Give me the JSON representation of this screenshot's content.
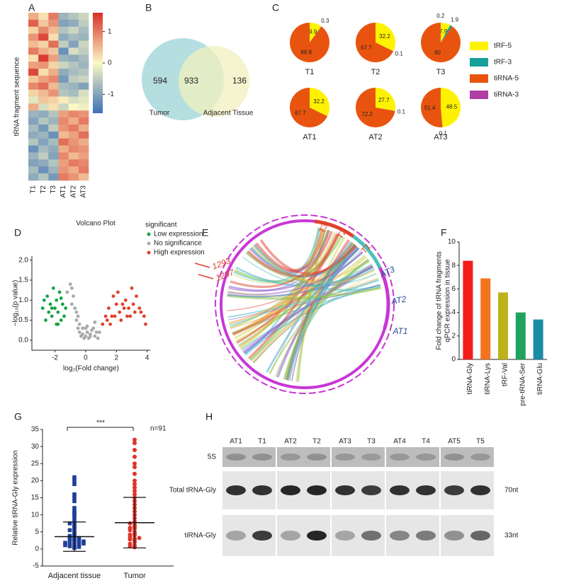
{
  "chart_data": [
    {
      "type": "heatmap",
      "panel": "A",
      "ylabel": "tRNA fragment sequence",
      "columns": [
        "T1",
        "T2",
        "T3",
        "AT1",
        "AT2",
        "AT3"
      ],
      "zlim": [
        -1.6,
        1.6
      ],
      "colorbar_ticks": [
        1,
        0,
        -1
      ],
      "values": [
        [
          0.6,
          0.2,
          1.0,
          -0.8,
          -0.6,
          -0.4
        ],
        [
          1.2,
          0.4,
          0.8,
          -1.0,
          -0.9,
          -0.5
        ],
        [
          0.3,
          0.9,
          0.5,
          -0.6,
          -0.4,
          -0.7
        ],
        [
          0.8,
          1.4,
          0.2,
          -0.9,
          -0.7,
          -0.8
        ],
        [
          0.5,
          0.3,
          1.1,
          -0.5,
          -1.0,
          -0.4
        ],
        [
          1.0,
          0.6,
          0.4,
          -1.2,
          -0.3,
          -0.5
        ],
        [
          0.2,
          1.5,
          0.7,
          -0.8,
          -0.9,
          -0.7
        ],
        [
          0.7,
          0.8,
          0.3,
          -0.4,
          -0.6,
          -0.8
        ],
        [
          1.4,
          0.2,
          0.6,
          -0.9,
          -0.7,
          -0.6
        ],
        [
          0.4,
          0.7,
          0.9,
          -1.1,
          -0.5,
          -0.4
        ],
        [
          0.9,
          1.1,
          0.5,
          -0.7,
          -0.8,
          -1.0
        ],
        [
          0.3,
          0.5,
          0.8,
          -0.6,
          -0.7,
          -0.3
        ],
        [
          -0.2,
          0.4,
          0.3,
          0.1,
          -0.3,
          -0.2
        ],
        [
          0.6,
          -0.3,
          0.2,
          -0.4,
          0.0,
          -0.1
        ],
        [
          -0.8,
          -0.9,
          -0.6,
          0.7,
          0.9,
          0.8
        ],
        [
          -1.0,
          -0.6,
          -0.8,
          0.9,
          0.6,
          1.0
        ],
        [
          -0.7,
          -1.1,
          -0.5,
          0.8,
          1.0,
          0.6
        ],
        [
          -0.9,
          -0.8,
          -1.2,
          0.5,
          0.7,
          1.1
        ],
        [
          -0.6,
          -1.0,
          -0.7,
          1.1,
          0.8,
          0.6
        ],
        [
          -1.2,
          -0.7,
          -0.9,
          0.6,
          0.9,
          0.8
        ],
        [
          -0.8,
          -0.5,
          -1.0,
          0.9,
          0.5,
          0.7
        ],
        [
          -1.0,
          -0.9,
          -0.6,
          0.7,
          1.0,
          0.9
        ],
        [
          -0.7,
          -1.2,
          -0.8,
          0.8,
          0.6,
          1.0
        ],
        [
          -0.9,
          -0.6,
          -1.1,
          1.0,
          0.8,
          0.5
        ]
      ]
    },
    {
      "type": "venn",
      "panel": "B",
      "sets": [
        "Tumor",
        "Adjacent Tissue"
      ],
      "values": [
        594,
        933,
        136
      ]
    },
    {
      "type": "pie",
      "panel": "C",
      "categories": [
        "tRF-5",
        "tRF-3",
        "tiRNA-5",
        "tiRNA-3"
      ],
      "colors": [
        "#fff200",
        "#16a09a",
        "#e8540f",
        "#b03ea4"
      ],
      "charts": [
        {
          "title": "T1",
          "values": [
            9.9,
            0.3,
            89.8,
            0
          ]
        },
        {
          "title": "T2",
          "values": [
            32.2,
            0.1,
            67.7,
            0
          ]
        },
        {
          "title": "T3",
          "values": [
            7.9,
            1.9,
            90.0,
            0.2
          ]
        },
        {
          "title": "AT1",
          "values": [
            32.2,
            0,
            67.7,
            0
          ]
        },
        {
          "title": "AT2",
          "values": [
            27.7,
            0.1,
            72.2,
            0
          ]
        },
        {
          "title": "AT3",
          "values": [
            48.5,
            0.1,
            51.4,
            0
          ]
        }
      ]
    },
    {
      "type": "scatter",
      "panel": "D",
      "title": "Volcano Plot",
      "legend_title": "significant",
      "xlabel": "log₂(Fold change)",
      "ylabel": "−log₁₀(p value)",
      "xlim": [
        -3.5,
        4.2
      ],
      "xticks": [
        -2,
        0,
        2,
        4
      ],
      "ylim": [
        -0.25,
        2.1
      ],
      "yticks": [
        {
          "value": 0,
          "label": "0.0"
        },
        0.5,
        {
          "value": 1,
          "label": "1.0"
        },
        1.5,
        {
          "value": 2,
          "label": "2.0"
        }
      ],
      "series": [
        {
          "name": "Low expression",
          "color": "#1aa348",
          "x": [
            -2.8,
            -2.6,
            -2.5,
            -2.4,
            -2.3,
            -2.2,
            -2.1,
            -2.0,
            -1.9,
            -1.9,
            -1.8,
            -1.7,
            -1.6,
            -1.5,
            -1.4,
            -1.3,
            -2.7,
            -2.2,
            -1.8,
            -1.6
          ],
          "values": [
            0.8,
            0.5,
            1.1,
            0.7,
            0.9,
            0.6,
            1.3,
            0.8,
            0.4,
            1.0,
            0.7,
            1.2,
            0.5,
            0.9,
            0.6,
            0.8,
            1.0,
            0.8,
            0.4,
            1.05
          ]
        },
        {
          "name": "No significance",
          "color": "#aaaaaa",
          "x": [
            -1.2,
            -1.0,
            -0.9,
            -0.8,
            -0.7,
            -0.6,
            -0.5,
            -0.4,
            -0.3,
            -0.2,
            -0.1,
            0.0,
            0.1,
            0.2,
            0.3,
            0.4,
            0.5,
            0.6,
            0.7,
            0.8,
            -0.9,
            -0.6,
            -0.4,
            -0.2,
            0.1,
            0.3,
            0.6,
            0.9,
            -0.5,
            0.0
          ],
          "values": [
            1.2,
            1.4,
            0.9,
            1.1,
            0.8,
            0.5,
            0.3,
            0.2,
            0.1,
            0.15,
            0.05,
            0.1,
            0.2,
            0.05,
            0.15,
            0.25,
            0.3,
            0.1,
            0.2,
            0.05,
            1.3,
            0.7,
            0.4,
            0.3,
            0.35,
            0.1,
            0.45,
            0.2,
            0.6,
            0.3
          ]
        },
        {
          "name": "High expression",
          "color": "#e0402e",
          "x": [
            1.1,
            1.3,
            1.4,
            1.5,
            1.6,
            1.8,
            1.9,
            2.0,
            2.1,
            2.2,
            2.3,
            2.5,
            2.6,
            2.7,
            2.8,
            3.0,
            3.1,
            3.2,
            3.3,
            3.5,
            3.6,
            3.8,
            3.9,
            1.7,
            2.4,
            2.9
          ],
          "values": [
            0.4,
            0.6,
            0.5,
            0.8,
            0.4,
            1.1,
            0.6,
            0.9,
            1.2,
            0.7,
            0.5,
            0.8,
            1.0,
            0.6,
            0.8,
            1.3,
            0.9,
            0.7,
            1.1,
            0.8,
            0.7,
            0.6,
            0.4,
            0.6,
            0.9,
            0.6
          ]
        }
      ]
    },
    {
      "type": "chord",
      "panel": "E",
      "sectors": [
        {
          "label": "T3",
          "color": "#e0402e"
        },
        {
          "label": "T2",
          "color": "#e0402e"
        },
        {
          "label": "T1",
          "color": "#e0402e"
        },
        {
          "label": "AT3",
          "color": "#2b4a9c"
        },
        {
          "label": "AT2",
          "color": "#2b4a9c"
        },
        {
          "label": "AT1",
          "color": "#2b4a9c"
        }
      ],
      "highlighted": [
        "1293",
        "1297"
      ]
    },
    {
      "type": "bar",
      "panel": "F",
      "ylabel": [
        "Fold change of tRNA fragments",
        "qPCR expression in tissue"
      ],
      "categories": [
        "tiRNA-Gly",
        "tiRNA-Lys",
        "tRF-Val",
        "pre-tRNA-Ser",
        "tiRNA-Glu"
      ],
      "values": [
        8.4,
        6.9,
        5.7,
        4.0,
        3.4
      ],
      "colors": [
        "#f41c1c",
        "#f47321",
        "#bdb219",
        "#20a35e",
        "#1b8ca6"
      ],
      "ylim": [
        0,
        10
      ],
      "yticks": [
        0,
        2,
        4,
        6,
        8,
        10
      ]
    },
    {
      "type": "dotplot",
      "panel": "G",
      "ylabel": "Relative tiRNA-Gly expression",
      "ylim": [
        -5,
        35
      ],
      "yticks": [
        -5,
        0,
        5,
        10,
        15,
        20,
        25,
        30,
        35
      ],
      "significance": "***",
      "annotation": "n=91",
      "groups": [
        {
          "name": "Adjacent tissue",
          "color": "#1f3f9a",
          "marker": "square",
          "mean": 3.6,
          "sd": 4.3,
          "values": [
            0.5,
            1,
            1.2,
            1.5,
            2,
            2,
            2.3,
            2.5,
            2.8,
            3,
            3,
            3.2,
            0.8,
            1.8,
            2.2,
            0.3,
            1.1,
            1.6,
            4,
            4.5,
            5,
            5.5,
            6,
            6.5,
            7,
            7.5,
            8,
            9,
            10,
            10.5,
            11,
            12,
            14,
            15,
            16,
            19,
            20,
            21,
            0.6,
            3.8
          ]
        },
        {
          "name": "Tumor",
          "color": "#e0342a",
          "marker": "circle",
          "mean": 7.7,
          "sd": 7.4,
          "values": [
            0.5,
            1,
            1.5,
            2,
            2.5,
            3,
            3.5,
            4,
            4.5,
            5,
            5.5,
            6,
            6.5,
            7,
            7.5,
            8,
            9,
            10,
            11,
            12,
            13,
            14,
            15,
            16,
            17,
            18,
            19,
            20,
            22,
            24,
            25,
            27,
            29,
            31,
            32,
            0.8,
            2.8,
            4.2,
            6.2,
            3.2
          ]
        }
      ]
    },
    {
      "type": "blot",
      "panel": "H",
      "lanes": [
        "AT1",
        "T1",
        "AT2",
        "T2",
        "AT3",
        "T3",
        "AT4",
        "T4",
        "AT5",
        "T5"
      ],
      "rows": [
        {
          "label": "5S",
          "intensity": [
            0.25,
            0.25,
            0.22,
            0.25,
            0.22,
            0.2,
            0.22,
            0.22,
            0.25,
            0.22
          ]
        },
        {
          "label": "Total tRNA-Gly",
          "size": "70nt",
          "intensity": [
            0.85,
            0.85,
            0.9,
            0.9,
            0.85,
            0.8,
            0.85,
            0.85,
            0.8,
            0.85
          ]
        },
        {
          "label": "tiRNA-Gly",
          "size": "33nt",
          "intensity": [
            0.3,
            0.8,
            0.3,
            0.9,
            0.3,
            0.55,
            0.45,
            0.5,
            0.4,
            0.6
          ]
        }
      ]
    }
  ]
}
